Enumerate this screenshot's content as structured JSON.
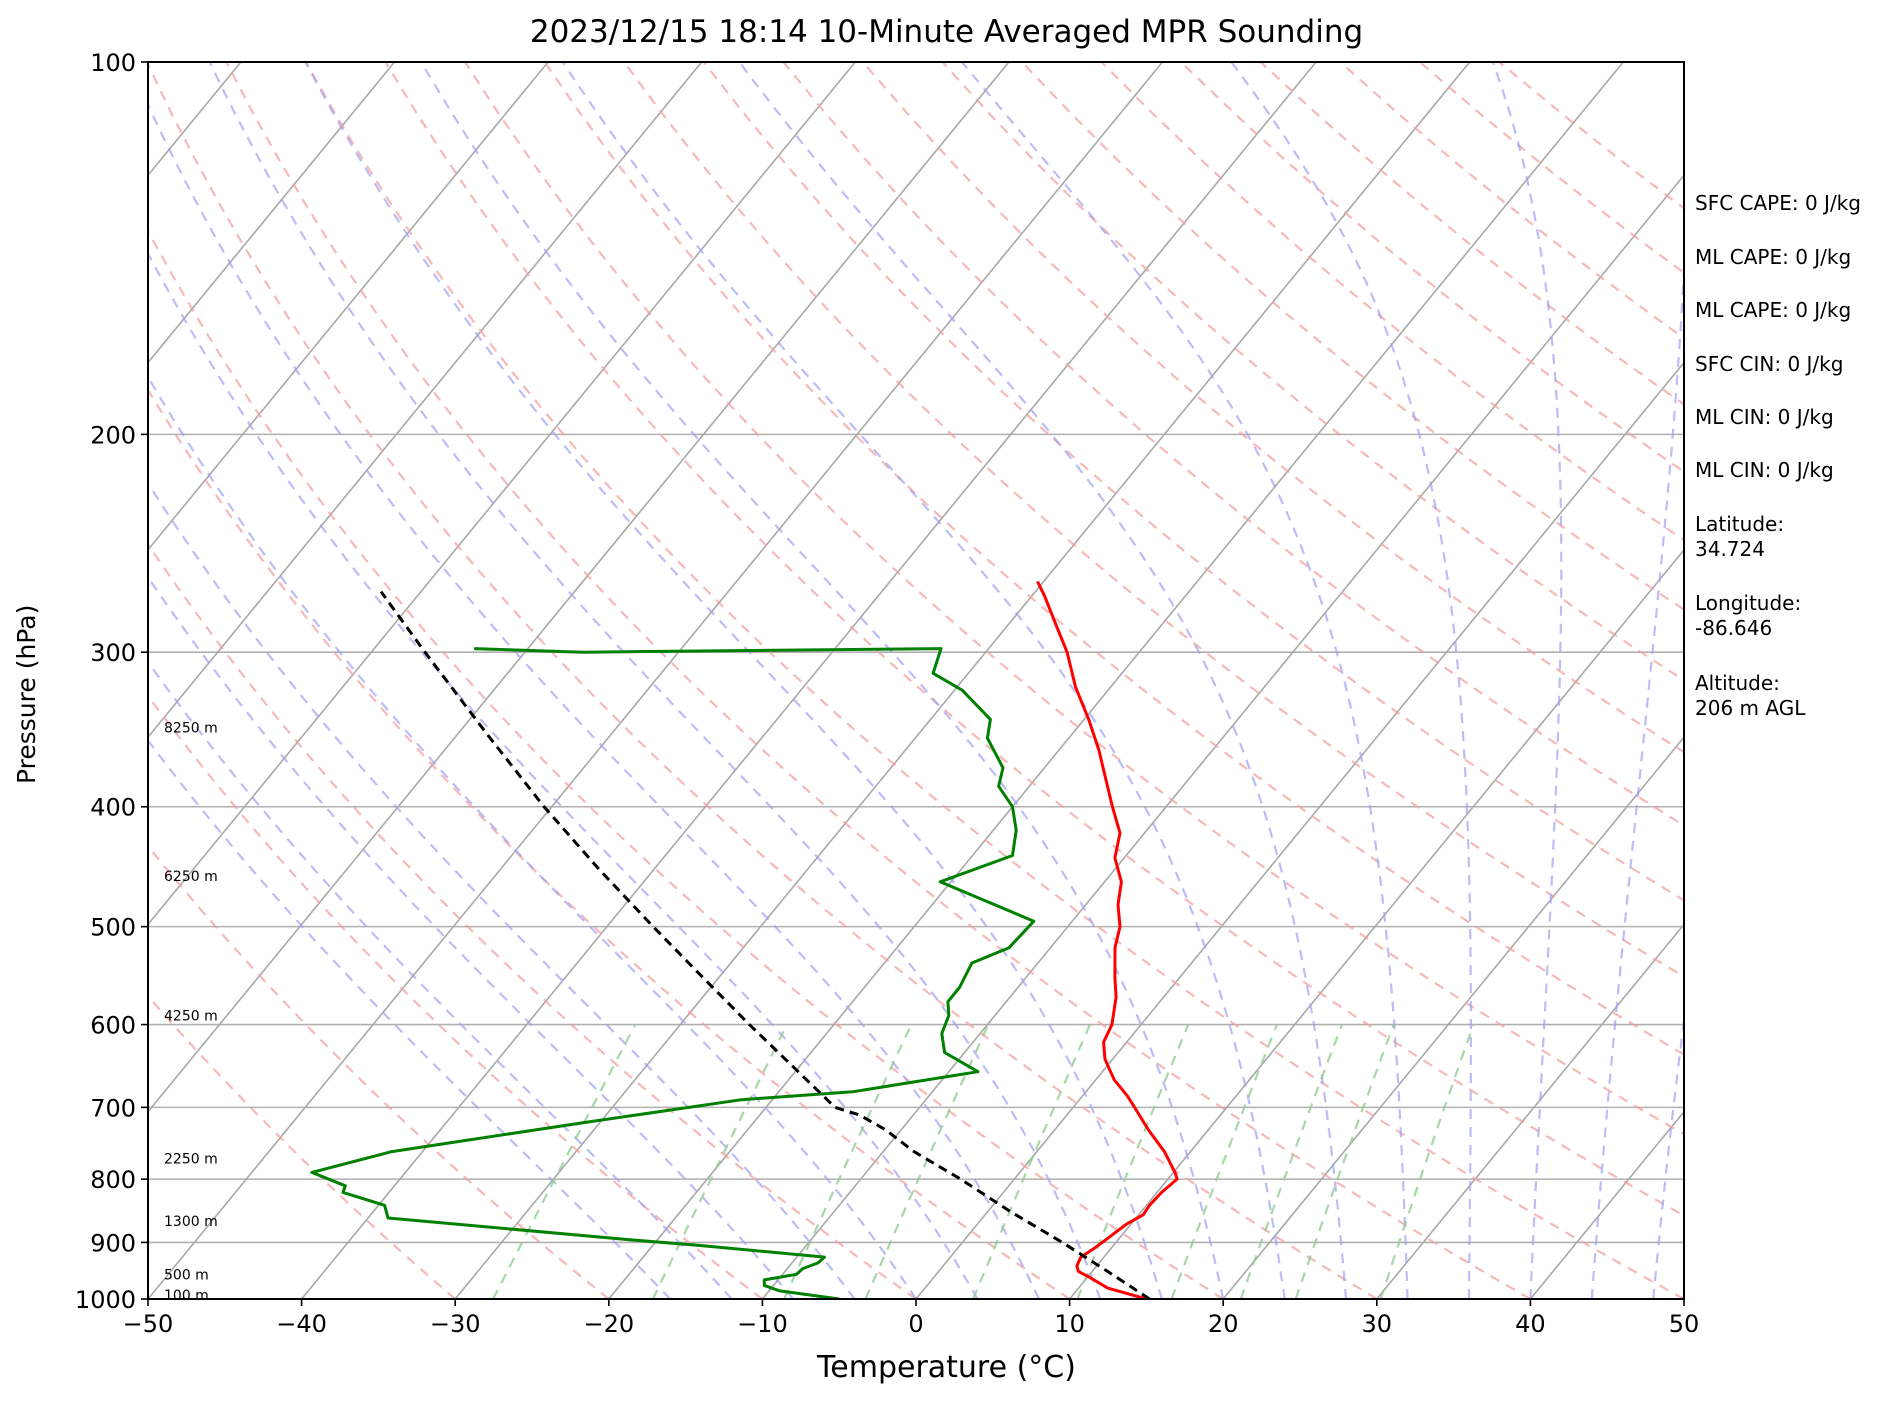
{
  "chart_data": {
    "type": "skew-t",
    "title": "2023/12/15 18:14 10-Minute Averaged MPR Sounding",
    "xlabel": "Temperature (°C)",
    "ylabel": "Pressure (hPa)",
    "xlim": [
      -50,
      50
    ],
    "ylim": [
      1000,
      100
    ],
    "log_pressure_axis": true,
    "grid": true,
    "x_ticks": [
      "−50",
      "−40",
      "−30",
      "−20",
      "−10",
      "0",
      "10",
      "20",
      "30",
      "40",
      "50"
    ],
    "y_ticks": [
      "100",
      "200",
      "300",
      "400",
      "500",
      "600",
      "700",
      "800",
      "900",
      "1000"
    ],
    "height_labels": [
      {
        "label": "8250 m",
        "p": 345
      },
      {
        "label": "6250 m",
        "p": 455
      },
      {
        "label": "4250 m",
        "p": 590
      },
      {
        "label": "2250 m",
        "p": 770
      },
      {
        "label": "1300 m",
        "p": 865
      },
      {
        "label": "500 m",
        "p": 955
      },
      {
        "label": "100 m",
        "p": 993
      }
    ],
    "series": [
      {
        "key": "temperature",
        "color": "#ff0000",
        "points": [
          [
            1000,
            15
          ],
          [
            980,
            11.9
          ],
          [
            960,
            10.1
          ],
          [
            950,
            9.1
          ],
          [
            940,
            8.7
          ],
          [
            925,
            8.5
          ],
          [
            910,
            8.9
          ],
          [
            890,
            9.3
          ],
          [
            870,
            9.7
          ],
          [
            855,
            10.3
          ],
          [
            840,
            10.2
          ],
          [
            820,
            10.3
          ],
          [
            800,
            10.6
          ],
          [
            790,
            10.1
          ],
          [
            760,
            8.3
          ],
          [
            730,
            6.1
          ],
          [
            700,
            4.0
          ],
          [
            685,
            2.9
          ],
          [
            665,
            1.2
          ],
          [
            640,
            -0.5
          ],
          [
            620,
            -1.5
          ],
          [
            600,
            -1.9
          ],
          [
            570,
            -3.1
          ],
          [
            550,
            -4.2
          ],
          [
            520,
            -5.8
          ],
          [
            500,
            -6.6
          ],
          [
            480,
            -7.9
          ],
          [
            460,
            -8.9
          ],
          [
            440,
            -10.6
          ],
          [
            420,
            -11.6
          ],
          [
            400,
            -13.5
          ],
          [
            380,
            -15.4
          ],
          [
            360,
            -17.4
          ],
          [
            340,
            -19.7
          ],
          [
            320,
            -22.3
          ],
          [
            300,
            -24.7
          ],
          [
            285,
            -26.9
          ],
          [
            270,
            -29.2
          ],
          [
            263,
            -30.4
          ]
        ]
      },
      {
        "key": "dewpoint",
        "color": "#008000",
        "points": [
          [
            1000,
            -5
          ],
          [
            985,
            -9.3
          ],
          [
            975,
            -10.6
          ],
          [
            965,
            -10.9
          ],
          [
            955,
            -9.1
          ],
          [
            945,
            -9.0
          ],
          [
            935,
            -8.3
          ],
          [
            925,
            -8.2
          ],
          [
            905,
            -17.0
          ],
          [
            895,
            -22.1
          ],
          [
            860,
            -38.7
          ],
          [
            840,
            -39.6
          ],
          [
            820,
            -43.0
          ],
          [
            810,
            -43.2
          ],
          [
            790,
            -46.1
          ],
          [
            760,
            -42.0
          ],
          [
            720,
            -31.0
          ],
          [
            690,
            -22.0
          ],
          [
            680,
            -15.2
          ],
          [
            655,
            -8.1
          ],
          [
            632,
            -11.3
          ],
          [
            610,
            -12.5
          ],
          [
            590,
            -13.0
          ],
          [
            575,
            -13.8
          ],
          [
            560,
            -13.8
          ],
          [
            535,
            -14.3
          ],
          [
            520,
            -12.7
          ],
          [
            495,
            -12.5
          ],
          [
            460,
            -20.7
          ],
          [
            438,
            -17.4
          ],
          [
            418,
            -18.5
          ],
          [
            400,
            -20.0
          ],
          [
            385,
            -22.0
          ],
          [
            372,
            -22.7
          ],
          [
            352,
            -25.3
          ],
          [
            340,
            -26.1
          ],
          [
            322,
            -29.5
          ],
          [
            312,
            -32.3
          ],
          [
            298,
            -33.1
          ],
          [
            300,
            -56.2
          ],
          [
            298,
            -63.5
          ]
        ]
      },
      {
        "key": "parcel",
        "color": "#000000",
        "dashed": true,
        "points": [
          [
            1000,
            15.2
          ],
          [
            950,
            11.0
          ],
          [
            900,
            6.5
          ],
          [
            850,
            1.5
          ],
          [
            800,
            -3.5
          ],
          [
            760,
            -8.0
          ],
          [
            730,
            -11.0
          ],
          [
            710,
            -13.5
          ],
          [
            700,
            -15.5
          ],
          [
            650,
            -20.3
          ],
          [
            600,
            -25.5
          ],
          [
            550,
            -31.0
          ],
          [
            500,
            -37.0
          ],
          [
            450,
            -43.5
          ],
          [
            400,
            -50.5
          ],
          [
            350,
            -58.0
          ],
          [
            300,
            -66.5
          ],
          [
            268,
            -72.6
          ]
        ]
      }
    ]
  },
  "stats": {
    "sfc_cape": "SFC CAPE: 0 J/kg",
    "ml_cape": "ML CAPE: 0 J/kg",
    "ml_cape_2": "ML CAPE: 0 J/kg",
    "sfc_cin": "SFC CIN: 0 J/kg",
    "ml_cin": "ML CIN: 0 J/kg",
    "ml_cin_2": "ML CIN: 0 J/kg",
    "latitude_label": "Latitude:",
    "latitude_value": "34.724",
    "longitude_label": "Longitude:",
    "longitude_value": "-86.646",
    "altitude_label": "Altitude:",
    "altitude_value": "206 m AGL"
  },
  "colors": {
    "isotherm": "#a8a8a8",
    "dry_adiabat": "#f3a0a0",
    "moist_adiabat": "#9f9ff3",
    "mixing_ratio": "#94cc94",
    "isobar": "#b0b0b0"
  }
}
